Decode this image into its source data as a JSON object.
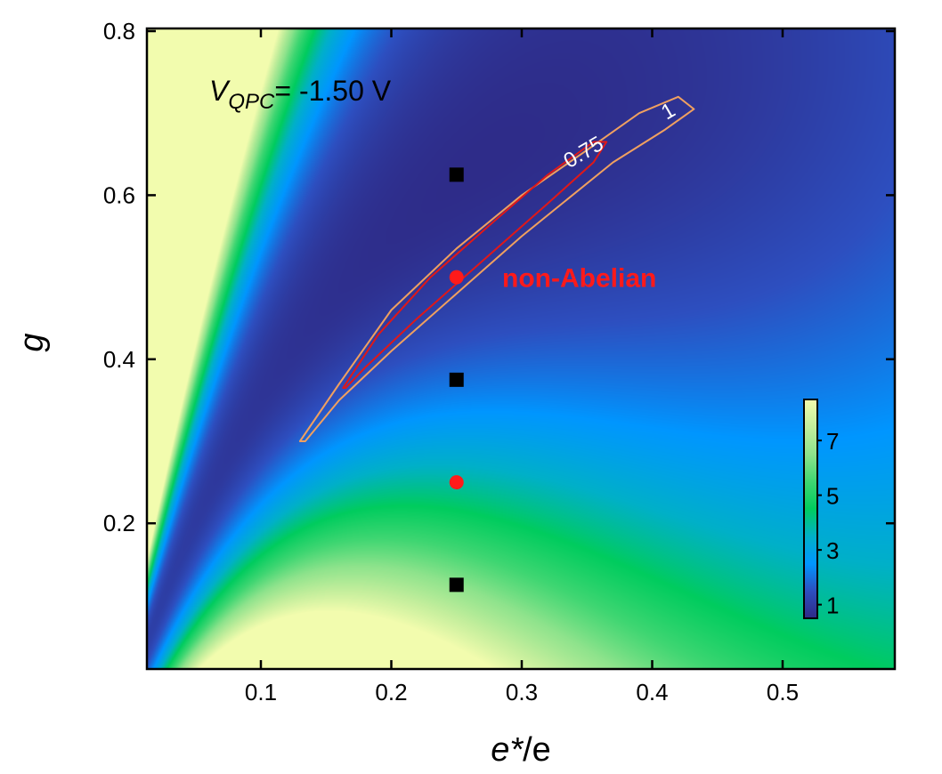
{
  "chart_data": {
    "type": "heatmap",
    "xlabel_main": "e*",
    "xlabel_rest": "/e",
    "ylabel": "g",
    "xlim": [
      0.012,
      0.587
    ],
    "ylim": [
      0.02,
      0.805
    ],
    "xticks": [
      0.1,
      0.2,
      0.3,
      0.4,
      0.5
    ],
    "xtick_labels": [
      "0.1",
      "0.2",
      "0.3",
      "0.4",
      "0.5"
    ],
    "yticks": [
      0.2,
      0.4,
      0.6,
      0.8
    ],
    "ytick_labels": [
      "0.2",
      "0.4",
      "0.6",
      "0.8"
    ],
    "annotation": {
      "V": "V",
      "sub": "QPC",
      "rest": "= -1.50 V"
    },
    "colorbar": {
      "range": [
        0.5,
        8.5
      ],
      "ticks": [
        1,
        3,
        5,
        7
      ],
      "tick_labels": [
        "1",
        "3",
        "5",
        "7"
      ],
      "colors": [
        "#2e2a86",
        "#2d4fc0",
        "#0096ff",
        "#00b0c8",
        "#00cc5e",
        "#3fd672",
        "#8ee38c",
        "#c3ee9c",
        "#f2fcae"
      ]
    },
    "contours": [
      {
        "level": 1,
        "label": "1",
        "color": "#f0a060",
        "label_at": [
          0.415,
          0.695
        ],
        "points": [
          [
            0.13,
            0.3
          ],
          [
            0.16,
            0.37
          ],
          [
            0.2,
            0.46
          ],
          [
            0.25,
            0.535
          ],
          [
            0.3,
            0.6
          ],
          [
            0.35,
            0.655
          ],
          [
            0.39,
            0.7
          ],
          [
            0.42,
            0.72
          ],
          [
            0.432,
            0.705
          ],
          [
            0.41,
            0.68
          ],
          [
            0.37,
            0.64
          ],
          [
            0.3,
            0.55
          ],
          [
            0.25,
            0.48
          ],
          [
            0.2,
            0.41
          ],
          [
            0.16,
            0.35
          ],
          [
            0.134,
            0.3
          ]
        ]
      },
      {
        "level": 0.75,
        "label": "0.75",
        "color": "#e01818",
        "label_at": [
          0.35,
          0.645
        ],
        "points": [
          [
            0.163,
            0.365
          ],
          [
            0.19,
            0.43
          ],
          [
            0.23,
            0.5
          ],
          [
            0.28,
            0.57
          ],
          [
            0.32,
            0.625
          ],
          [
            0.355,
            0.665
          ],
          [
            0.365,
            0.665
          ],
          [
            0.355,
            0.64
          ],
          [
            0.32,
            0.59
          ],
          [
            0.27,
            0.52
          ],
          [
            0.22,
            0.45
          ],
          [
            0.18,
            0.39
          ],
          [
            0.165,
            0.365
          ]
        ]
      }
    ],
    "markers": [
      {
        "shape": "square",
        "color": "#000000",
        "x": 0.25,
        "y": 0.625
      },
      {
        "shape": "circle",
        "color": "#ff1a1a",
        "x": 0.25,
        "y": 0.5
      },
      {
        "shape": "square",
        "color": "#000000",
        "x": 0.25,
        "y": 0.375
      },
      {
        "shape": "circle",
        "color": "#ff1a1a",
        "x": 0.25,
        "y": 0.25
      },
      {
        "shape": "square",
        "color": "#000000",
        "x": 0.25,
        "y": 0.125
      }
    ],
    "label_nonabelian": {
      "text": "non-Abelian",
      "color": "#ff1a1a",
      "x": 0.285,
      "y": 0.5
    }
  }
}
